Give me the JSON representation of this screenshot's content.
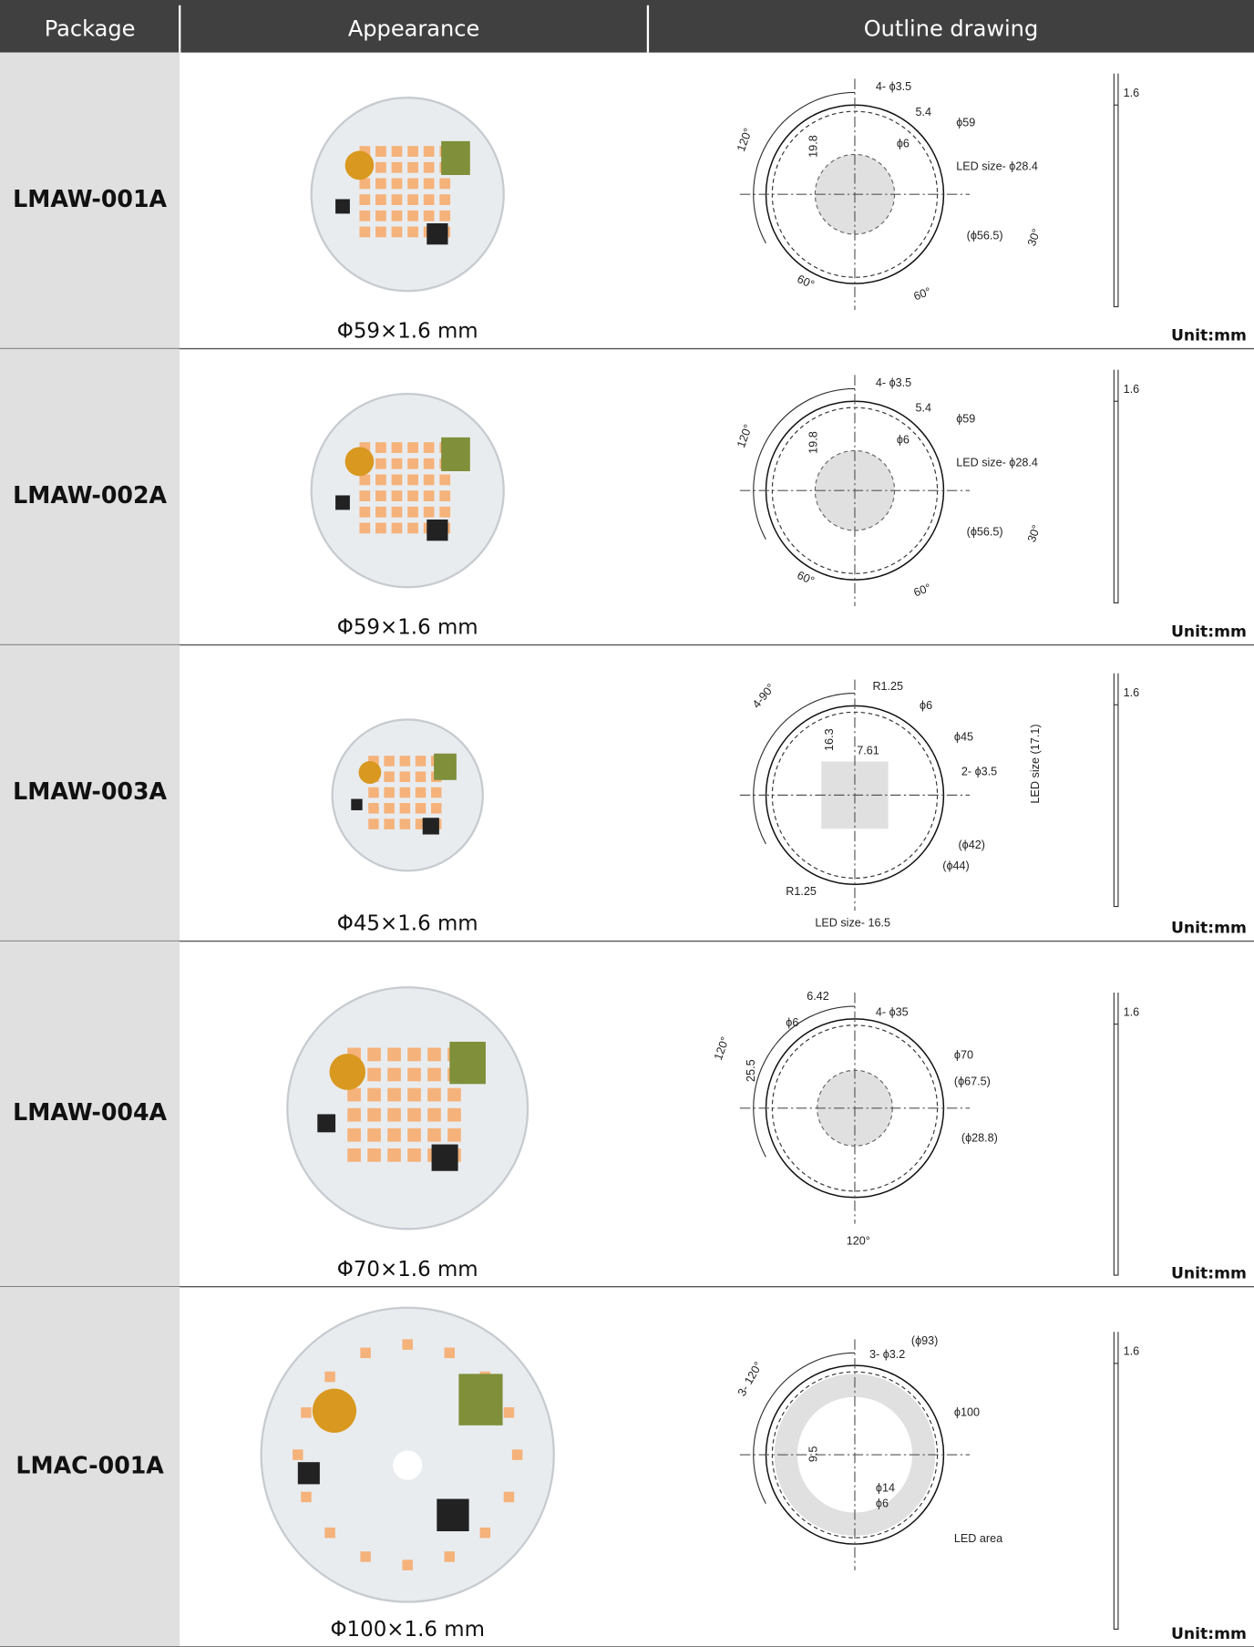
{
  "header": {
    "columns": [
      "Package",
      "Appearance",
      "Outline drawing"
    ]
  },
  "rows": [
    {
      "package": "LMAW-001A",
      "size": "Φ59×1.6 mm",
      "unit": "Unit:mm",
      "drawing_labels": [
        "4- ϕ3.5",
        "5.4",
        "ϕ59",
        "ϕ6",
        "19.8",
        "120°",
        "LED size- ϕ28.4",
        "(ϕ56.5)",
        "30°",
        "60°",
        "60°",
        "1.6"
      ]
    },
    {
      "package": "LMAW-002A",
      "size": "Φ59×1.6 mm",
      "unit": "Unit:mm",
      "drawing_labels": [
        "4- ϕ3.5",
        "5.4",
        "ϕ59",
        "ϕ6",
        "19.8",
        "120°",
        "LED size- ϕ28.4",
        "(ϕ56.5)",
        "30°",
        "60°",
        "60°",
        "1.6"
      ]
    },
    {
      "package": "LMAW-003A",
      "size": "Φ45×1.6 mm",
      "unit": "Unit:mm",
      "drawing_labels": [
        "R1.25",
        "ϕ6",
        "16.3",
        "7.61",
        "ϕ45",
        "4-90°",
        "2- ϕ3.5",
        "LED size (17.1)",
        "(ϕ42)",
        "(ϕ44)",
        "R1.25",
        "LED size- 16.5",
        "1.6"
      ]
    },
    {
      "package": "LMAW-004A",
      "size": "Φ70×1.6 mm",
      "unit": "Unit:mm",
      "drawing_labels": [
        "6.42",
        "4- ϕ35",
        "ϕ6",
        "ϕ70",
        "120°",
        "(ϕ67.5)",
        "25.5",
        "(ϕ28.8)",
        "120°",
        "1.6"
      ]
    },
    {
      "package": "LMAC-001A",
      "size": "Φ100×1.6 mm",
      "unit": "Unit:mm",
      "drawing_labels": [
        "(ϕ93)",
        "3- ϕ3.2",
        "3- 120°",
        "ϕ100",
        "9.5",
        "ϕ14",
        "ϕ6",
        "LED area",
        "1.6"
      ]
    }
  ]
}
